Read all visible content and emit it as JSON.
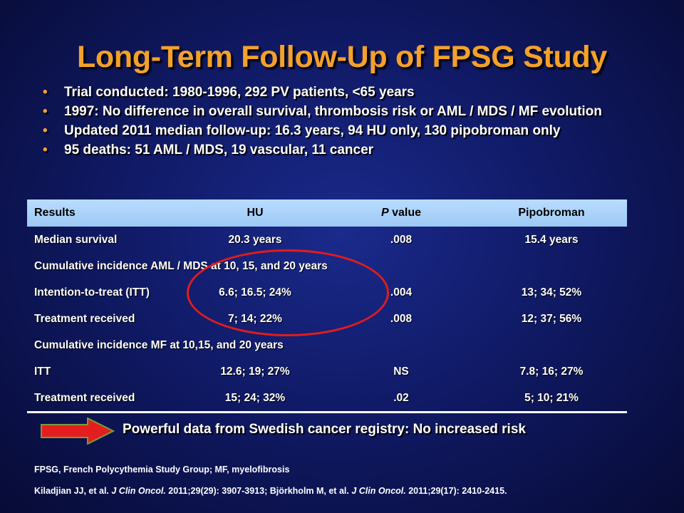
{
  "slide": {
    "title": "Long-Term Follow-Up of FPSG Study",
    "bullets": [
      "Trial conducted: 1980-1996, 292 PV patients, <65 years",
      "1997: No difference in overall survival, thrombosis risk or AML / MDS / MF evolution",
      "Updated 2011 median follow-up: 16.3 years, 94 HU only, 130 pipobroman only",
      "95 deaths: 51 AML / MDS, 19 vascular, 11 cancer"
    ],
    "bullet_glyph": "•"
  },
  "table": {
    "headers": {
      "results": "Results",
      "hu": "HU",
      "p_value_italic": "P",
      "p_value_rest": " value",
      "pipobroman": "Pipobroman"
    },
    "rows": [
      {
        "results": "Median survival",
        "hu": "20.3 years",
        "p": ".008",
        "pipobroman": "15.4 years"
      },
      {
        "section": "Cumulative incidence AML / MDS at 10, 15, and 20 years"
      },
      {
        "results": "Intention-to-treat (ITT)",
        "hu": "6.6; 16.5; 24%",
        "p": ".004",
        "pipobroman": "13; 34; 52%"
      },
      {
        "results": "Treatment received",
        "hu": "7; 14; 22%",
        "p": ".008",
        "pipobroman": "12; 37; 56%"
      },
      {
        "section": "Cumulative incidence MF at 10,15, and 20 years"
      },
      {
        "results": "ITT",
        "hu": "12.6; 19; 27%",
        "p": "NS",
        "pipobroman": "7.8; 16; 27%"
      },
      {
        "results": "Treatment received",
        "hu": "15; 24; 32%",
        "p": ".02",
        "pipobroman": "5; 10; 21%"
      }
    ]
  },
  "takeaway": "Powerful data from Swedish cancer registry: No increased risk",
  "footnotes": {
    "abbreviations": "FPSG, French Polycythemia Study Group; MF, myelofibrosis",
    "ref1_prefix": "Kiladjian JJ, et al. ",
    "ref1_journal": "J Clin Oncol.",
    "ref1_detail": " 2011;29(29): 3907-3913; Björkholm M, et al. ",
    "ref2_journal": "J Clin Oncol.",
    "ref2_detail": " 2011;29(17): 2410-2415."
  },
  "colors": {
    "title": "#f4a12a",
    "header_band": "#a9d1f8",
    "highlight_ellipse": "#e21c1c",
    "arrow_fill": "#e41e1e",
    "arrow_border": "#7a9a3a"
  }
}
